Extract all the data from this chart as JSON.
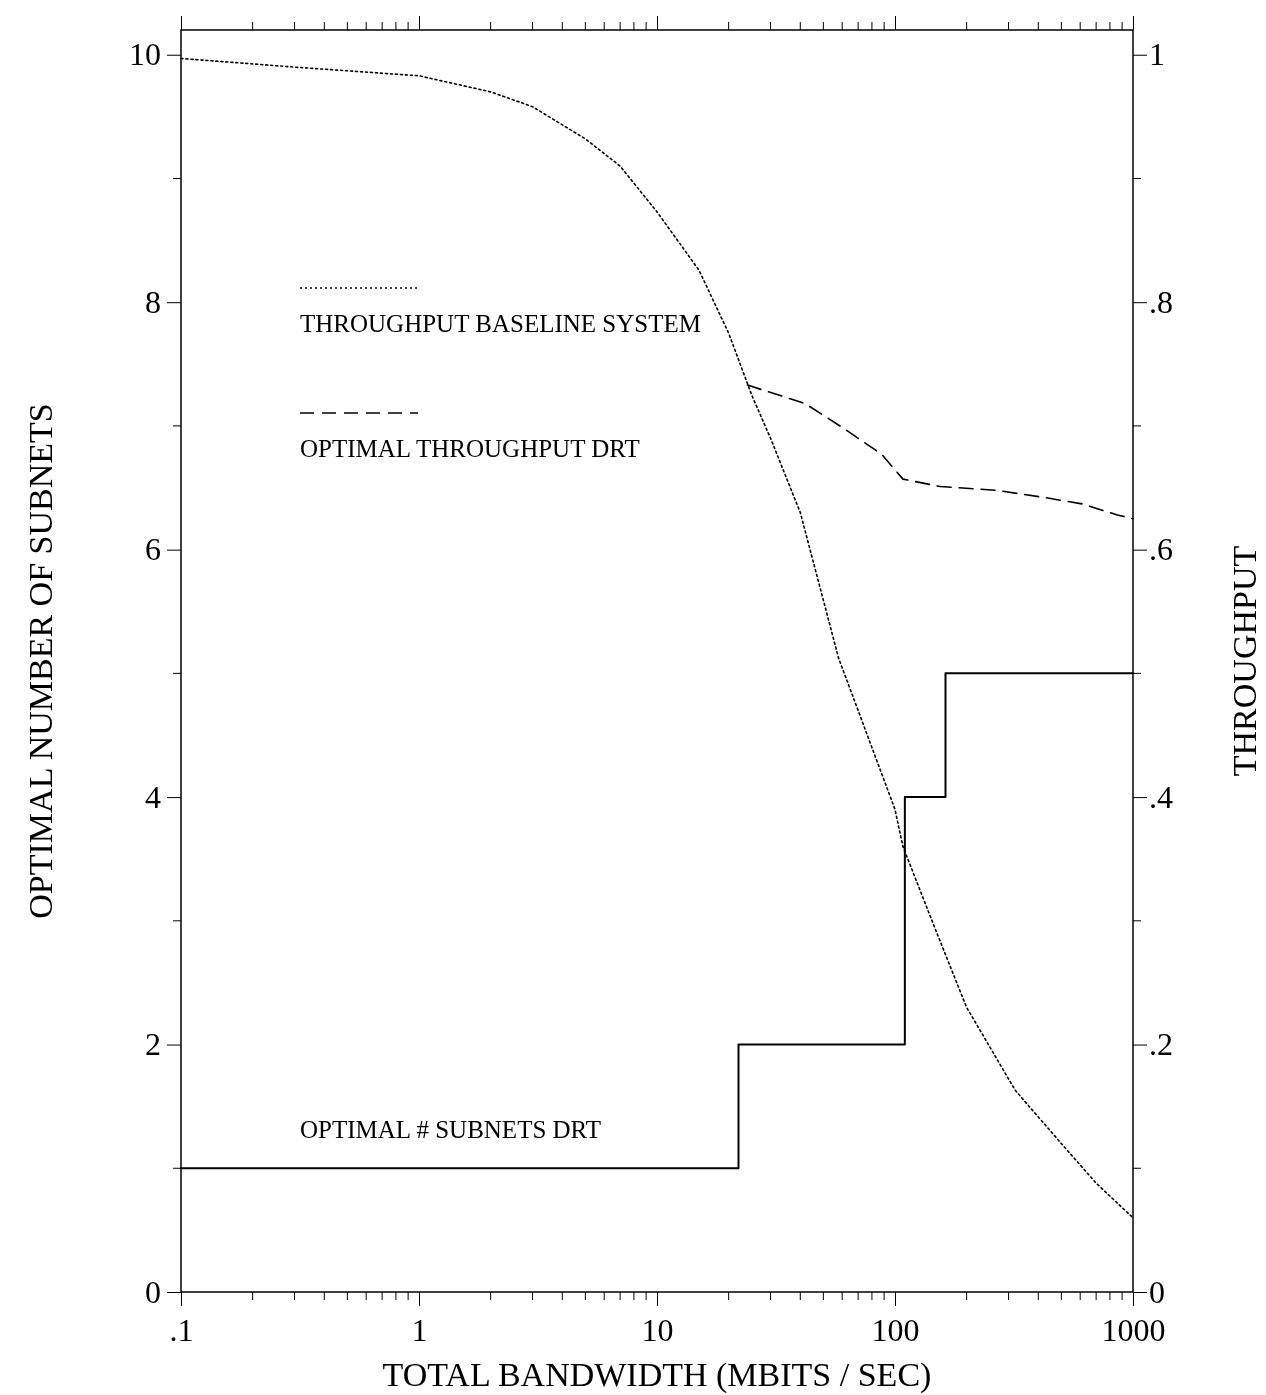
{
  "chart_data": {
    "type": "line",
    "xlabel": "TOTAL BANDWIDTH (MBITS / SEC)",
    "ylabel": "OPTIMAL NUMBER OF SUBNETS",
    "y2label": "THROUGHPUT",
    "log": "x",
    "grid": false,
    "legend": "center left",
    "xlim": [
      0.1,
      1000
    ],
    "ylim": [
      0,
      10.2
    ],
    "y2lim": [
      0,
      1.02
    ],
    "xticks": [
      {
        "value": 0.1,
        "label": ".1"
      },
      1,
      10,
      100,
      1000
    ],
    "yticks": [
      0,
      2,
      4,
      6,
      8,
      10
    ],
    "y2ticks": [
      0,
      {
        "value": 0.2,
        "label": ".2"
      },
      {
        "value": 0.4,
        "label": ".4"
      },
      {
        "value": 0.6,
        "label": ".6"
      },
      {
        "value": 0.8,
        "label": ".8"
      },
      1
    ],
    "series": [
      {
        "name": "THROUGHPUT BASELINE SYSTEM",
        "axis": "y2",
        "color": "#000000",
        "line_style": "dotted",
        "x": [
          0.1,
          0.3,
          1,
          2,
          3,
          5,
          7,
          10,
          15,
          20,
          25,
          30,
          40,
          58,
          70,
          100,
          108,
          150,
          200,
          320,
          500,
          700,
          1000
        ],
        "values": [
          0.997,
          0.99,
          0.983,
          0.97,
          0.958,
          0.932,
          0.91,
          0.873,
          0.826,
          0.775,
          0.725,
          0.69,
          0.63,
          0.512,
          0.47,
          0.39,
          0.36,
          0.29,
          0.23,
          0.163,
          0.12,
          0.088,
          0.06
        ]
      },
      {
        "name": "OPTIMAL THROUGHPUT DRT",
        "axis": "y2",
        "color": "#000000",
        "line_style": "dashed",
        "x": [
          24,
          42,
          62,
          88,
          108,
          155,
          265,
          430,
          610,
          860,
          1000
        ],
        "values": [
          0.733,
          0.718,
          0.697,
          0.677,
          0.657,
          0.651,
          0.648,
          0.642,
          0.637,
          0.628,
          0.625
        ]
      },
      {
        "name": "OPTIMAL # SUBNETS DRT",
        "type": "step",
        "axis": "y",
        "color": "#000000",
        "line_style": "solid",
        "x": [
          0.1,
          22,
          110,
          163,
          1000
        ],
        "values": [
          1,
          2,
          4,
          5,
          5
        ]
      }
    ]
  }
}
